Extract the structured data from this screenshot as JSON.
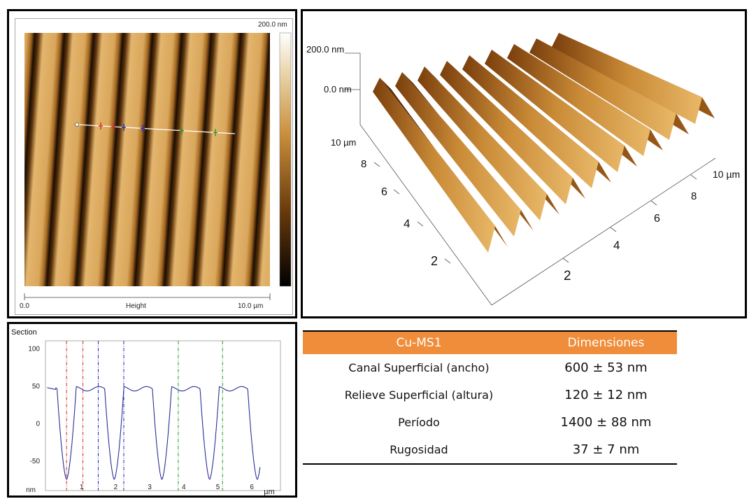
{
  "afm_image": {
    "scale_max": "200.0 nm",
    "axis_start": "0.0",
    "axis_label": "Height",
    "axis_end": "10.0 µm",
    "colors": {
      "light": "#e3b56c",
      "mid": "#b5762a",
      "dark": "#1a0d04"
    }
  },
  "view_3d": {
    "z_top": "200.0 nm",
    "z_zero": "0.0 nm",
    "y_axis_top": "10 µm",
    "y_ticks": [
      "8",
      "6",
      "4",
      "2"
    ],
    "x_axis_end": "10 µm",
    "x_ticks": [
      "8",
      "6",
      "4",
      "2"
    ]
  },
  "section": {
    "title": "Section",
    "y_ticks": [
      "100",
      "50",
      "0",
      "-50"
    ],
    "y_unit": "nm",
    "x_ticks": [
      "1",
      "2",
      "3",
      "4",
      "5",
      "6"
    ],
    "x_unit": "µm",
    "line_color": "#2b2f9a"
  },
  "table": {
    "headers": [
      "Cu-MS1",
      "Dimensiones"
    ],
    "rows": [
      {
        "label": "Canal Superficial (ancho)",
        "value": "600 ± 53 nm"
      },
      {
        "label": "Relieve Superficial (altura)",
        "value": "120 ± 12 nm"
      },
      {
        "label": "Período",
        "value": "1400 ± 88 nm"
      },
      {
        "label": "Rugosidad",
        "value": "37 ± 7 nm"
      }
    ],
    "header_color": "#f08d3a"
  }
}
